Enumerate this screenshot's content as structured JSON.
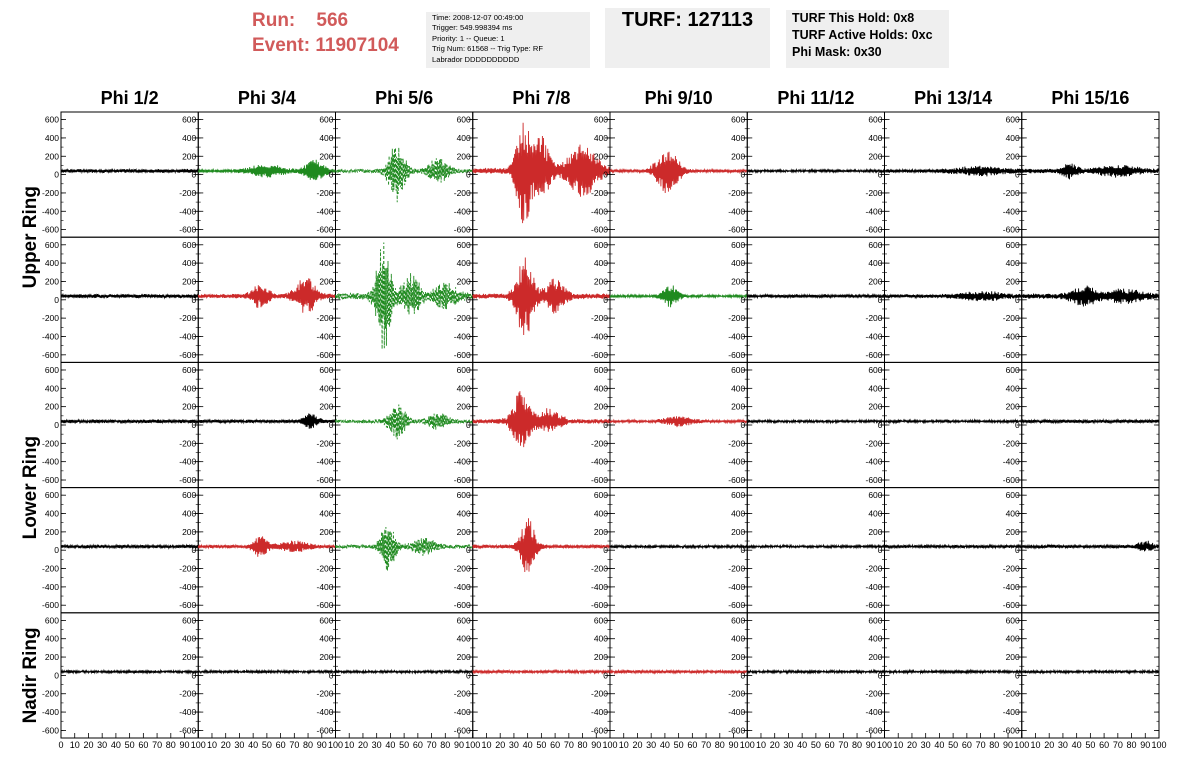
{
  "run": {
    "run_label": "Run:",
    "run_value": "566",
    "event_label": "Event:",
    "event_value": "11907104"
  },
  "event_info": {
    "time": "Time: 2008-12-07 00:49:00",
    "trigger": "Trigger: 549.998394 ms",
    "priority": "Priority: 1 -- Queue: 1",
    "trig_num": "Trig Num: 61568 -- Trig Type: RF",
    "labrador": "Labrador DDDDDDDDDD"
  },
  "turf": {
    "label": "TURF: 127113"
  },
  "turf_status": {
    "this_hold": "TURF This Hold: 0x8",
    "active_holds": "TURF Active Holds: 0xc",
    "phi_mask": "Phi Mask: 0x30"
  },
  "colors": {
    "black": "#000000",
    "red": "#cc2a2a",
    "green": "#1f8a1f",
    "title_red": "#d15a5a",
    "box_grey": "#efefef"
  },
  "chart_data": {
    "type": "line",
    "columns": [
      "Phi 1/2",
      "Phi 3/4",
      "Phi 5/6",
      "Phi 7/8",
      "Phi 9/10",
      "Phi 11/12",
      "Phi 13/14",
      "Phi 15/16"
    ],
    "row_labels": [
      {
        "name": "Upper Ring",
        "rows": [
          0,
          1
        ]
      },
      {
        "name": "Lower Ring",
        "rows": [
          2,
          3
        ]
      },
      {
        "name": "Nadir Ring",
        "rows": [
          4
        ]
      }
    ],
    "yticks": [
      "600",
      "400",
      "200",
      "0",
      "-200",
      "-400",
      "-600"
    ],
    "ytick_values": [
      600,
      400,
      200,
      0,
      -200,
      -400,
      -600
    ],
    "ylim": [
      -650,
      650
    ],
    "xticks": [
      "0",
      "10",
      "20",
      "30",
      "40",
      "50",
      "60",
      "70",
      "80",
      "90",
      "100"
    ],
    "xlim": [
      0,
      100
    ],
    "panels": [
      [
        {
          "color": "black",
          "style": "solid",
          "noise": 18,
          "bursts": []
        },
        {
          "color": "green",
          "style": "solid",
          "noise": 14,
          "bursts": [
            {
              "center": 50,
              "amp": 60,
              "width": 15
            },
            {
              "center": 85,
              "amp": 110,
              "width": 8
            }
          ]
        },
        {
          "color": "green",
          "style": "dashed",
          "noise": 20,
          "bursts": [
            {
              "center": 45,
              "amp": 330,
              "width": 7
            },
            {
              "center": 75,
              "amp": 130,
              "width": 8
            }
          ]
        },
        {
          "color": "red",
          "style": "solid",
          "noise": 30,
          "bursts": [
            {
              "center": 37,
              "amp": 560,
              "width": 6
            },
            {
              "center": 50,
              "amp": 350,
              "width": 7
            },
            {
              "center": 80,
              "amp": 280,
              "width": 12
            }
          ]
        },
        {
          "color": "red",
          "style": "solid",
          "noise": 14,
          "bursts": [
            {
              "center": 42,
              "amp": 260,
              "width": 9
            }
          ]
        },
        {
          "color": "black",
          "style": "solid",
          "noise": 12,
          "bursts": []
        },
        {
          "color": "black",
          "style": "solid",
          "noise": 18,
          "bursts": [
            {
              "center": 70,
              "amp": 40,
              "width": 20
            }
          ]
        },
        {
          "color": "black",
          "style": "solid",
          "noise": 22,
          "bursts": [
            {
              "center": 35,
              "amp": 70,
              "width": 6
            },
            {
              "center": 70,
              "amp": 50,
              "width": 15
            }
          ]
        }
      ],
      [
        {
          "color": "black",
          "style": "solid",
          "noise": 20,
          "bursts": []
        },
        {
          "color": "red",
          "style": "solid",
          "noise": 22,
          "bursts": [
            {
              "center": 45,
              "amp": 120,
              "width": 7
            },
            {
              "center": 78,
              "amp": 200,
              "width": 8
            }
          ]
        },
        {
          "color": "green",
          "style": "dashed",
          "noise": 35,
          "bursts": [
            {
              "center": 35,
              "amp": 580,
              "width": 6
            },
            {
              "center": 55,
              "amp": 220,
              "width": 7
            },
            {
              "center": 80,
              "amp": 120,
              "width": 10
            }
          ]
        },
        {
          "color": "red",
          "style": "solid",
          "noise": 28,
          "bursts": [
            {
              "center": 38,
              "amp": 450,
              "width": 7
            },
            {
              "center": 60,
              "amp": 170,
              "width": 8
            }
          ]
        },
        {
          "color": "green",
          "style": "solid",
          "noise": 12,
          "bursts": [
            {
              "center": 44,
              "amp": 120,
              "width": 6
            }
          ]
        },
        {
          "color": "black",
          "style": "solid",
          "noise": 16,
          "bursts": []
        },
        {
          "color": "black",
          "style": "solid",
          "noise": 18,
          "bursts": [
            {
              "center": 70,
              "amp": 40,
              "width": 18
            }
          ]
        },
        {
          "color": "black",
          "style": "solid",
          "noise": 26,
          "bursts": [
            {
              "center": 45,
              "amp": 90,
              "width": 10
            },
            {
              "center": 75,
              "amp": 60,
              "width": 15
            }
          ]
        }
      ],
      [
        {
          "color": "black",
          "style": "solid",
          "noise": 18,
          "bursts": []
        },
        {
          "color": "black",
          "style": "solid",
          "noise": 16,
          "bursts": [
            {
              "center": 82,
              "amp": 70,
              "width": 6
            }
          ]
        },
        {
          "color": "green",
          "style": "dashed",
          "noise": 18,
          "bursts": [
            {
              "center": 45,
              "amp": 190,
              "width": 7
            },
            {
              "center": 75,
              "amp": 90,
              "width": 8
            }
          ]
        },
        {
          "color": "red",
          "style": "solid",
          "noise": 22,
          "bursts": [
            {
              "center": 35,
              "amp": 320,
              "width": 7
            },
            {
              "center": 55,
              "amp": 120,
              "width": 10
            }
          ]
        },
        {
          "color": "red",
          "style": "solid",
          "noise": 12,
          "bursts": [
            {
              "center": 50,
              "amp": 50,
              "width": 12
            }
          ]
        },
        {
          "color": "black",
          "style": "solid",
          "noise": 12,
          "bursts": []
        },
        {
          "color": "black",
          "style": "solid",
          "noise": 12,
          "bursts": []
        },
        {
          "color": "black",
          "style": "solid",
          "noise": 16,
          "bursts": []
        }
      ],
      [
        {
          "color": "black",
          "style": "solid",
          "noise": 16,
          "bursts": []
        },
        {
          "color": "red",
          "style": "solid",
          "noise": 16,
          "bursts": [
            {
              "center": 45,
              "amp": 110,
              "width": 6
            },
            {
              "center": 70,
              "amp": 50,
              "width": 12
            }
          ]
        },
        {
          "color": "green",
          "style": "dashed",
          "noise": 20,
          "bursts": [
            {
              "center": 38,
              "amp": 250,
              "width": 6
            },
            {
              "center": 65,
              "amp": 80,
              "width": 10
            }
          ]
        },
        {
          "color": "red",
          "style": "solid",
          "noise": 18,
          "bursts": [
            {
              "center": 40,
              "amp": 300,
              "width": 6
            }
          ]
        },
        {
          "color": "black",
          "style": "solid",
          "noise": 12,
          "bursts": []
        },
        {
          "color": "black",
          "style": "solid",
          "noise": 12,
          "bursts": []
        },
        {
          "color": "black",
          "style": "solid",
          "noise": 14,
          "bursts": []
        },
        {
          "color": "black",
          "style": "solid",
          "noise": 16,
          "bursts": [
            {
              "center": 90,
              "amp": 50,
              "width": 6
            }
          ]
        }
      ],
      [
        {
          "color": "black",
          "style": "solid",
          "noise": 12,
          "bursts": []
        },
        {
          "color": "black",
          "style": "solid",
          "noise": 12,
          "bursts": []
        },
        {
          "color": "black",
          "style": "solid",
          "noise": 12,
          "bursts": []
        },
        {
          "color": "red",
          "style": "solid",
          "noise": 14,
          "bursts": []
        },
        {
          "color": "red",
          "style": "solid",
          "noise": 14,
          "bursts": []
        },
        {
          "color": "black",
          "style": "solid",
          "noise": 12,
          "bursts": []
        },
        {
          "color": "black",
          "style": "solid",
          "noise": 12,
          "bursts": []
        },
        {
          "color": "black",
          "style": "solid",
          "noise": 12,
          "bursts": []
        }
      ]
    ]
  }
}
